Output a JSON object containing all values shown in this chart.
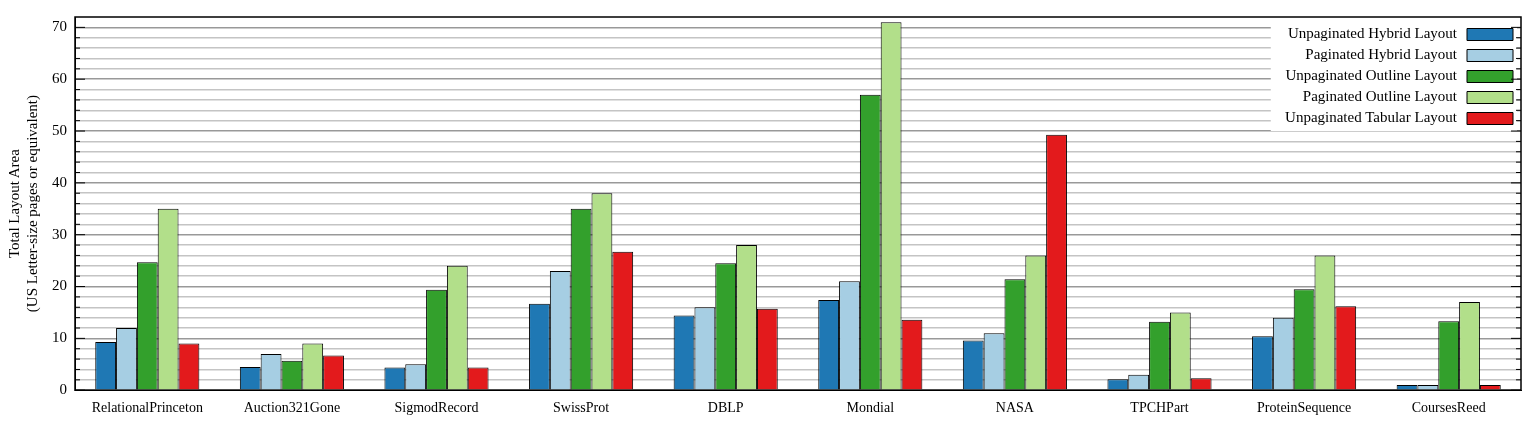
{
  "chart_data": {
    "type": "bar",
    "ylabel": "Total Layout Area\n(US Letter-size pages or equivalent)",
    "categories": [
      "RelationalPrinceton",
      "Auction321Gone",
      "SigmodRecord",
      "SwissProt",
      "DBLP",
      "Mondial",
      "NASA",
      "TPCHPart",
      "ProteinSequence",
      "CoursesReed"
    ],
    "series": [
      {
        "name": "Unpaginated Hybrid Layout",
        "color": "#1f78b4",
        "values": [
          9.3,
          4.5,
          4.4,
          16.7,
          14.4,
          17.4,
          9.6,
          2.1,
          10.4,
          1
        ]
      },
      {
        "name": "Paginated Hybrid Layout",
        "color": "#a6cee3",
        "values": [
          12,
          7,
          5,
          23,
          16,
          21,
          11,
          3,
          14,
          1
        ]
      },
      {
        "name": "Unpaginated Outline Layout",
        "color": "#33a02c",
        "values": [
          24.7,
          5.7,
          19.4,
          35,
          24.5,
          57,
          21.4,
          13.2,
          19.5,
          13.3
        ]
      },
      {
        "name": "Paginated Outline Layout",
        "color": "#b2df8a",
        "values": [
          35,
          9,
          24,
          38,
          28,
          71,
          26,
          15,
          26,
          17
        ]
      },
      {
        "name": "Unpaginated Tabular Layout",
        "color": "#e31a1c",
        "values": [
          9,
          6.7,
          4.4,
          26.7,
          15.7,
          13.6,
          49.3,
          2.3,
          16.2,
          1
        ]
      }
    ],
    "ylim": [
      0,
      72
    ],
    "yticks": [
      0,
      {
        "value": 2,
        "label": null
      },
      {
        "value": 4,
        "label": null
      },
      {
        "value": 6,
        "label": null
      },
      {
        "value": 8,
        "label": null
      },
      10,
      {
        "value": 12,
        "label": null
      },
      {
        "value": 14,
        "label": null
      },
      {
        "value": 16,
        "label": null
      },
      {
        "value": 18,
        "label": null
      },
      20,
      {
        "value": 22,
        "label": null
      },
      {
        "value": 24,
        "label": null
      },
      {
        "value": 26,
        "label": null
      },
      {
        "value": 28,
        "label": null
      },
      30,
      {
        "value": 32,
        "label": null
      },
      {
        "value": 34,
        "label": null
      },
      {
        "value": 36,
        "label": null
      },
      {
        "value": 38,
        "label": null
      },
      40,
      {
        "value": 42,
        "label": null
      },
      {
        "value": 44,
        "label": null
      },
      {
        "value": 46,
        "label": null
      },
      {
        "value": 48,
        "label": null
      },
      50,
      {
        "value": 52,
        "label": null
      },
      {
        "value": 54,
        "label": null
      },
      {
        "value": 56,
        "label": null
      },
      {
        "value": 58,
        "label": null
      },
      60,
      {
        "value": 62,
        "label": null
      },
      {
        "value": 64,
        "label": null
      },
      {
        "value": 66,
        "label": null
      },
      {
        "value": 68,
        "label": null
      },
      70
    ],
    "grid": "y",
    "legend": "top right"
  }
}
